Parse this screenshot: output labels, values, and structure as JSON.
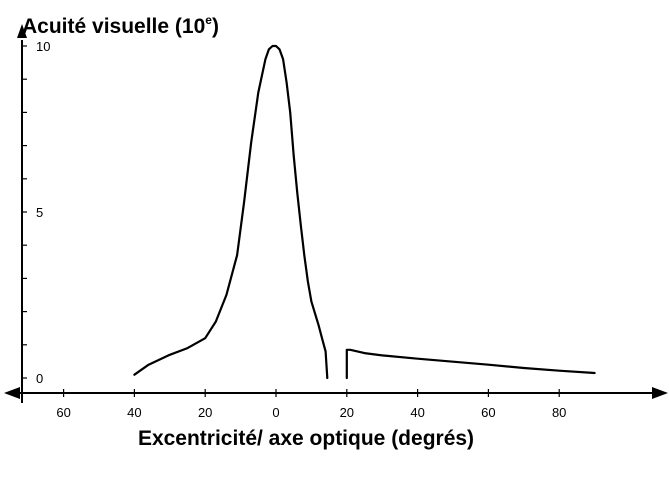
{
  "chart_data": {
    "type": "line",
    "title": "",
    "ylabel": "Acuité visuelle (10",
    "ylabel_sup": "e",
    "ylabel_close": ")",
    "xlabel": "Excentricité/ axe optique (degrés)",
    "x_tick_labels": [
      "60",
      "40",
      "20",
      "0",
      "20",
      "40",
      "60",
      "80"
    ],
    "y_tick_labels": [
      "0",
      "5",
      "10"
    ],
    "xlim": [
      -70,
      110
    ],
    "ylim": [
      0,
      10
    ],
    "grid": false,
    "legend": "none",
    "series": [
      {
        "x": [
          -40,
          -36,
          -30,
          -25,
          -20,
          -17,
          -14,
          -11,
          -9,
          -7,
          -5,
          -3,
          -2,
          -1,
          0,
          1,
          2,
          3,
          4,
          5,
          6,
          7,
          8,
          9,
          10,
          12,
          13,
          14,
          14.5
        ],
        "y": [
          0.1,
          0.4,
          0.7,
          0.9,
          1.2,
          1.7,
          2.5,
          3.7,
          5.3,
          7.1,
          8.6,
          9.6,
          9.9,
          10.0,
          10.0,
          9.9,
          9.6,
          8.9,
          8.0,
          6.7,
          5.6,
          4.6,
          3.7,
          2.9,
          2.3,
          1.6,
          1.2,
          0.8,
          0.0
        ]
      },
      {
        "x": [
          20,
          20,
          21,
          25,
          30,
          40,
          50,
          60,
          70,
          80,
          90
        ],
        "y": [
          0.0,
          0.85,
          0.85,
          0.75,
          0.68,
          0.58,
          0.49,
          0.4,
          0.3,
          0.22,
          0.15
        ]
      }
    ]
  }
}
